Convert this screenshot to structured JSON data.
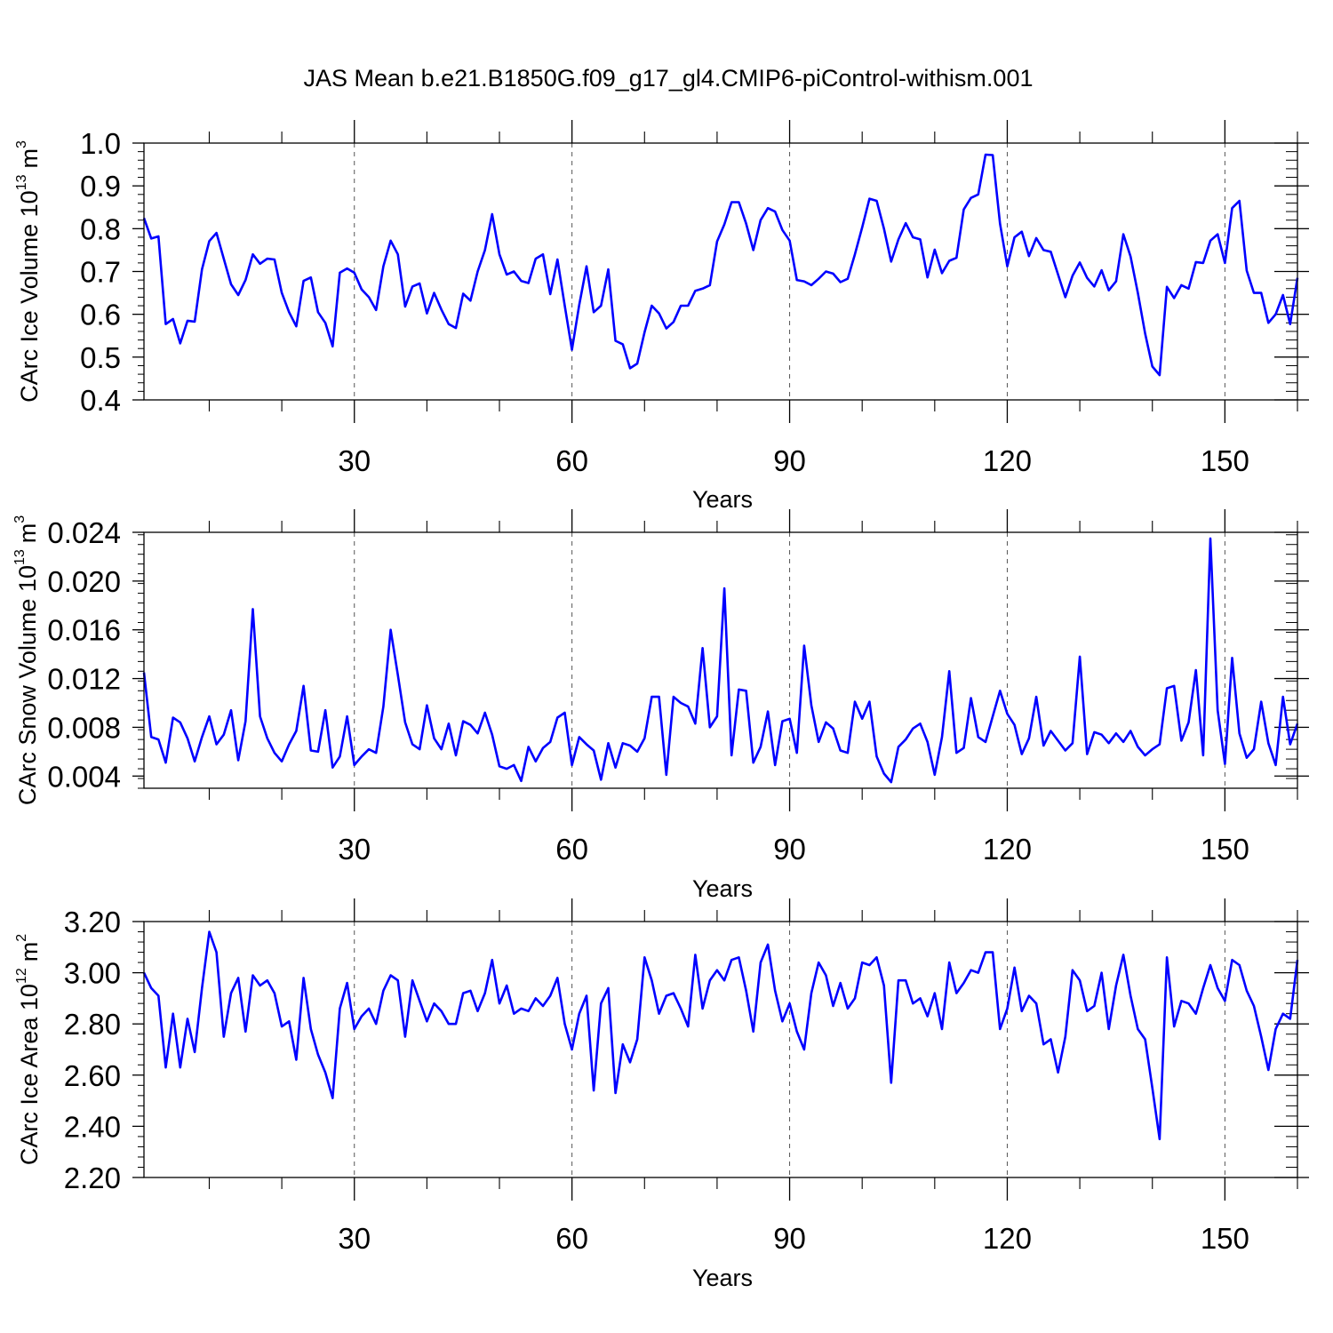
{
  "title": "JAS Mean b.e21.B1850G.f09_g17_gl4.CMIP6-piControl-withism.001",
  "line_color": "#0000ff",
  "chart_data": [
    {
      "type": "line",
      "title": "",
      "xlabel": "Years",
      "ylabel": "CArc Ice Volume 10",
      "ylabel_exponent": "13",
      "ylabel_unit": "m",
      "ylabel_unit_exponent": "3",
      "xlim": [
        1,
        160
      ],
      "ylim": [
        0.4,
        1.0
      ],
      "xticks": [
        "30",
        "60",
        "90",
        "120",
        "150"
      ],
      "yticks": [
        "0.4",
        "0.5",
        "0.6",
        "0.7",
        "0.8",
        "0.9",
        "1.0"
      ],
      "grid": "vertical dashed at major x ticks",
      "series": [
        {
          "name": "CArc Ice Volume",
          "x_start": 1,
          "values": [
            0.825,
            0.777,
            0.782,
            0.577,
            0.589,
            0.532,
            0.585,
            0.583,
            0.705,
            0.771,
            0.79,
            0.73,
            0.67,
            0.645,
            0.68,
            0.74,
            0.718,
            0.73,
            0.728,
            0.65,
            0.605,
            0.572,
            0.678,
            0.686,
            0.605,
            0.58,
            0.525,
            0.697,
            0.707,
            0.697,
            0.658,
            0.64,
            0.61,
            0.712,
            0.772,
            0.74,
            0.618,
            0.665,
            0.672,
            0.602,
            0.65,
            0.611,
            0.577,
            0.568,
            0.648,
            0.632,
            0.7,
            0.75,
            0.834,
            0.74,
            0.693,
            0.7,
            0.678,
            0.673,
            0.73,
            0.74,
            0.647,
            0.728,
            0.62,
            0.517,
            0.622,
            0.712,
            0.605,
            0.62,
            0.705,
            0.538,
            0.53,
            0.474,
            0.485,
            0.558,
            0.62,
            0.602,
            0.567,
            0.582,
            0.62,
            0.62,
            0.655,
            0.66,
            0.668,
            0.77,
            0.81,
            0.862,
            0.862,
            0.812,
            0.75,
            0.82,
            0.848,
            0.84,
            0.797,
            0.772,
            0.68,
            0.677,
            0.668,
            0.683,
            0.7,
            0.695,
            0.675,
            0.683,
            0.74,
            0.803,
            0.87,
            0.865,
            0.8,
            0.723,
            0.775,
            0.813,
            0.78,
            0.775,
            0.686,
            0.751,
            0.696,
            0.725,
            0.732,
            0.845,
            0.872,
            0.88,
            0.973,
            0.972,
            0.812,
            0.712,
            0.78,
            0.793,
            0.736,
            0.778,
            0.75,
            0.746,
            0.693,
            0.64,
            0.69,
            0.721,
            0.685,
            0.665,
            0.703,
            0.656,
            0.677,
            0.787,
            0.735,
            0.65,
            0.555,
            0.478,
            0.458,
            0.664,
            0.638,
            0.668,
            0.66,
            0.722,
            0.72,
            0.772,
            0.787,
            0.72,
            0.848,
            0.865,
            0.702,
            0.65,
            0.65,
            0.58,
            0.6,
            0.645,
            0.577,
            0.685
          ]
        }
      ]
    },
    {
      "type": "line",
      "title": "",
      "xlabel": "Years",
      "ylabel": "CArc Snow Volume 10",
      "ylabel_exponent": "13",
      "ylabel_unit": "m",
      "ylabel_unit_exponent": "3",
      "xlim": [
        1,
        160
      ],
      "ylim": [
        0.003,
        0.024
      ],
      "xticks": [
        "30",
        "60",
        "90",
        "120",
        "150"
      ],
      "yticks": [
        "0.004",
        "0.008",
        "0.012",
        "0.016",
        "0.020",
        "0.024"
      ],
      "grid": "vertical dashed at major x ticks",
      "series": [
        {
          "name": "CArc Snow Volume",
          "x_start": 1,
          "values": [
            0.0125,
            0.0072,
            0.007,
            0.0051,
            0.0088,
            0.0084,
            0.0071,
            0.0052,
            0.0072,
            0.0089,
            0.0066,
            0.0074,
            0.0094,
            0.0053,
            0.0085,
            0.0177,
            0.0089,
            0.0071,
            0.0059,
            0.0052,
            0.0066,
            0.0077,
            0.0114,
            0.0061,
            0.006,
            0.0094,
            0.0047,
            0.0056,
            0.0089,
            0.0049,
            0.0056,
            0.0062,
            0.0059,
            0.0097,
            0.016,
            0.0123,
            0.0084,
            0.0066,
            0.0062,
            0.0098,
            0.0071,
            0.0062,
            0.0083,
            0.0057,
            0.0085,
            0.0082,
            0.0075,
            0.0092,
            0.0074,
            0.0048,
            0.0046,
            0.0049,
            0.0036,
            0.0064,
            0.0052,
            0.0063,
            0.0068,
            0.0088,
            0.0092,
            0.0049,
            0.0072,
            0.0066,
            0.0061,
            0.0037,
            0.0067,
            0.0047,
            0.0067,
            0.0065,
            0.006,
            0.0071,
            0.0105,
            0.0105,
            0.0041,
            0.0105,
            0.01,
            0.0097,
            0.0083,
            0.0145,
            0.008,
            0.0089,
            0.0194,
            0.0057,
            0.0111,
            0.011,
            0.0051,
            0.0064,
            0.0093,
            0.0049,
            0.0085,
            0.0087,
            0.0059,
            0.0147,
            0.0098,
            0.0068,
            0.0084,
            0.0079,
            0.0061,
            0.0059,
            0.0101,
            0.0087,
            0.0101,
            0.0056,
            0.0042,
            0.0035,
            0.0064,
            0.007,
            0.0079,
            0.0083,
            0.0068,
            0.0041,
            0.0072,
            0.0126,
            0.0059,
            0.0063,
            0.0104,
            0.0072,
            0.0068,
            0.0089,
            0.011,
            0.0091,
            0.0082,
            0.0058,
            0.0071,
            0.0105,
            0.0065,
            0.0077,
            0.0069,
            0.0061,
            0.0067,
            0.0138,
            0.0058,
            0.0076,
            0.0074,
            0.0067,
            0.0075,
            0.0068,
            0.0077,
            0.0064,
            0.0057,
            0.0062,
            0.0066,
            0.0112,
            0.0114,
            0.0069,
            0.0084,
            0.0127,
            0.0057,
            0.0235,
            0.0094,
            0.005,
            0.0137,
            0.0075,
            0.0055,
            0.0062,
            0.0101,
            0.0067,
            0.0049,
            0.0105,
            0.0066,
            0.0083
          ]
        }
      ]
    },
    {
      "type": "line",
      "title": "",
      "xlabel": "Years",
      "ylabel": "CArc Ice Area 10",
      "ylabel_exponent": "12",
      "ylabel_unit": "m",
      "ylabel_unit_exponent": "2",
      "xlim": [
        1,
        160
      ],
      "ylim": [
        2.2,
        3.2
      ],
      "xticks": [
        "30",
        "60",
        "90",
        "120",
        "150"
      ],
      "yticks": [
        "2.20",
        "2.40",
        "2.60",
        "2.80",
        "3.00",
        "3.20"
      ],
      "grid": "vertical dashed at major x ticks",
      "series": [
        {
          "name": "CArc Ice Area",
          "x_start": 1,
          "values": [
            3.0,
            2.94,
            2.91,
            2.63,
            2.84,
            2.63,
            2.82,
            2.69,
            2.94,
            3.16,
            3.08,
            2.75,
            2.92,
            2.98,
            2.77,
            2.99,
            2.95,
            2.97,
            2.92,
            2.79,
            2.81,
            2.66,
            2.98,
            2.78,
            2.68,
            2.61,
            2.51,
            2.86,
            2.96,
            2.78,
            2.83,
            2.86,
            2.8,
            2.93,
            2.99,
            2.97,
            2.75,
            2.97,
            2.89,
            2.81,
            2.88,
            2.85,
            2.8,
            2.8,
            2.92,
            2.93,
            2.85,
            2.92,
            3.05,
            2.88,
            2.95,
            2.84,
            2.86,
            2.85,
            2.9,
            2.87,
            2.91,
            2.98,
            2.8,
            2.7,
            2.84,
            2.91,
            2.54,
            2.88,
            2.94,
            2.53,
            2.72,
            2.65,
            2.74,
            3.06,
            2.97,
            2.84,
            2.91,
            2.92,
            2.86,
            2.79,
            3.07,
            2.86,
            2.97,
            3.01,
            2.97,
            3.05,
            3.06,
            2.93,
            2.77,
            3.04,
            3.11,
            2.93,
            2.81,
            2.88,
            2.77,
            2.7,
            2.92,
            3.04,
            2.99,
            2.87,
            2.96,
            2.86,
            2.9,
            3.04,
            3.03,
            3.06,
            2.95,
            2.57,
            2.97,
            2.97,
            2.88,
            2.9,
            2.83,
            2.92,
            2.78,
            3.04,
            2.92,
            2.96,
            3.01,
            3.0,
            3.08,
            3.08,
            2.78,
            2.86,
            3.02,
            2.85,
            2.91,
            2.88,
            2.72,
            2.74,
            2.61,
            2.75,
            3.01,
            2.97,
            2.85,
            2.87,
            3.0,
            2.78,
            2.95,
            3.07,
            2.91,
            2.78,
            2.74,
            2.55,
            2.35,
            3.06,
            2.79,
            2.89,
            2.88,
            2.84,
            2.94,
            3.03,
            2.94,
            2.89,
            3.05,
            3.03,
            2.93,
            2.87,
            2.75,
            2.62,
            2.78,
            2.84,
            2.82,
            3.05
          ]
        }
      ]
    }
  ]
}
